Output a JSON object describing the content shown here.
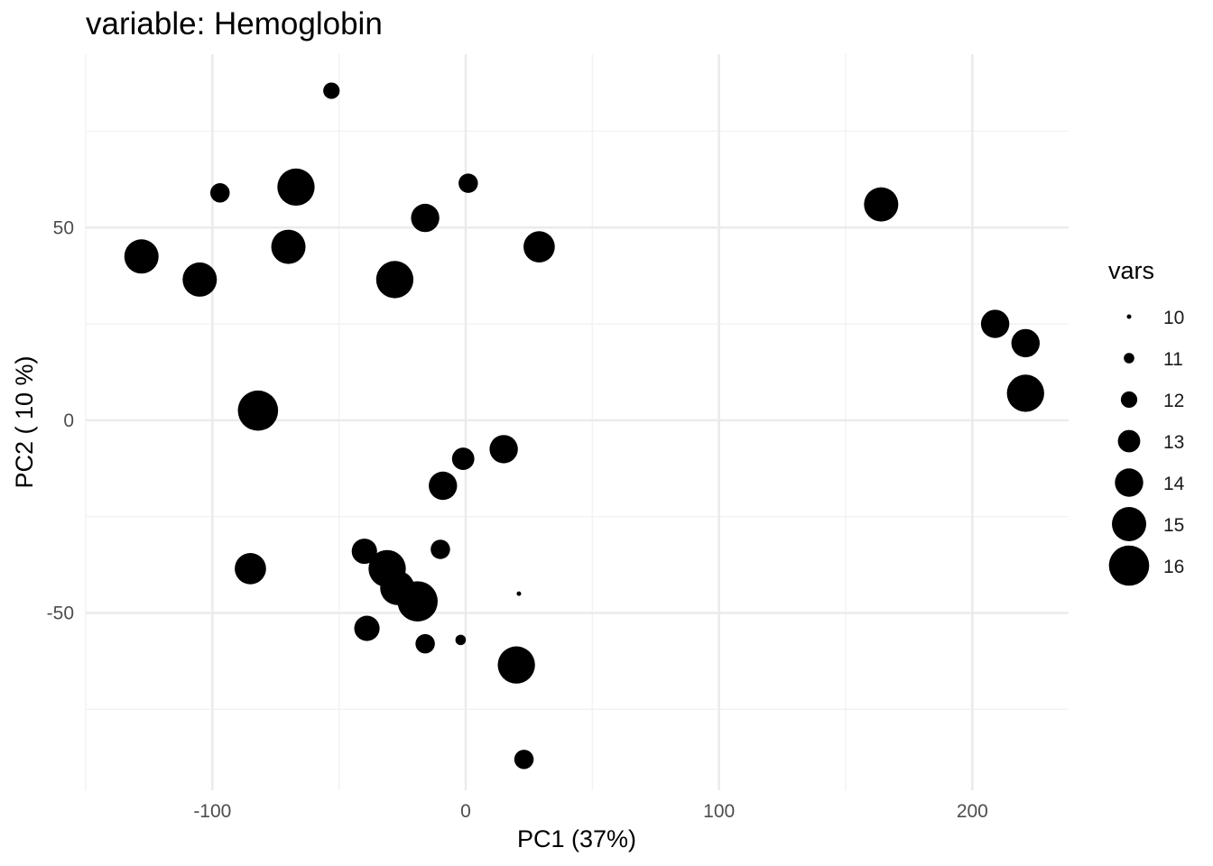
{
  "chart_data": {
    "type": "scatter",
    "title": "variable: Hemoglobin",
    "xlabel": "PC1 (37%)",
    "ylabel": "PC2 ( 10 %)",
    "xlim": [
      -150,
      238
    ],
    "ylim": [
      -96,
      95
    ],
    "x_ticks": [
      -100,
      0,
      100,
      200
    ],
    "x_tick_labels": [
      "-100",
      "0",
      "100",
      "200"
    ],
    "y_ticks": [
      -50,
      0,
      50
    ],
    "y_tick_labels": [
      "-50",
      "0",
      "50"
    ],
    "x_minor": [
      -150,
      -50,
      50,
      150
    ],
    "y_minor": [
      -75,
      -25,
      25,
      75
    ],
    "grid": true,
    "point_color": "#000000",
    "legend": {
      "title": "vars",
      "placement": "right",
      "entries": [
        {
          "label": "10",
          "value": 10
        },
        {
          "label": "11",
          "value": 11
        },
        {
          "label": "12",
          "value": 12
        },
        {
          "label": "13",
          "value": 13
        },
        {
          "label": "14",
          "value": 14
        },
        {
          "label": "15",
          "value": 15
        },
        {
          "label": "16",
          "value": 16
        }
      ]
    },
    "points": [
      {
        "x": -53,
        "y": 85.5,
        "size": 12
      },
      {
        "x": -97,
        "y": 59,
        "size": 12.5
      },
      {
        "x": -67,
        "y": 60.5,
        "size": 15.5
      },
      {
        "x": 1,
        "y": 61.5,
        "size": 12.5
      },
      {
        "x": -16,
        "y": 52.5,
        "size": 14
      },
      {
        "x": -128,
        "y": 42.5,
        "size": 15
      },
      {
        "x": -105,
        "y": 36.5,
        "size": 15
      },
      {
        "x": -70,
        "y": 45,
        "size": 15
      },
      {
        "x": -28,
        "y": 36.5,
        "size": 15.5
      },
      {
        "x": 29,
        "y": 45,
        "size": 14.5
      },
      {
        "x": 164,
        "y": 56,
        "size": 15
      },
      {
        "x": 209,
        "y": 25,
        "size": 14
      },
      {
        "x": 221,
        "y": 20,
        "size": 14
      },
      {
        "x": 221,
        "y": 7,
        "size": 15.5
      },
      {
        "x": -82,
        "y": 2.5,
        "size": 16
      },
      {
        "x": 15,
        "y": -7.5,
        "size": 14
      },
      {
        "x": -1,
        "y": -10,
        "size": 13
      },
      {
        "x": -9,
        "y": -17,
        "size": 14
      },
      {
        "x": -10,
        "y": -33.5,
        "size": 12.5
      },
      {
        "x": -40,
        "y": -34,
        "size": 13.5
      },
      {
        "x": -85,
        "y": -38.5,
        "size": 14.5
      },
      {
        "x": -31,
        "y": -38.5,
        "size": 15.5
      },
      {
        "x": -27,
        "y": -43.5,
        "size": 15
      },
      {
        "x": -19,
        "y": -47,
        "size": 16
      },
      {
        "x": 21,
        "y": -45,
        "size": 10
      },
      {
        "x": -39,
        "y": -54,
        "size": 13.5
      },
      {
        "x": -16,
        "y": -58,
        "size": 12.5
      },
      {
        "x": -2,
        "y": -57,
        "size": 11
      },
      {
        "x": 20,
        "y": -63.5,
        "size": 15.5
      },
      {
        "x": 23,
        "y": -88,
        "size": 12.5
      }
    ]
  }
}
